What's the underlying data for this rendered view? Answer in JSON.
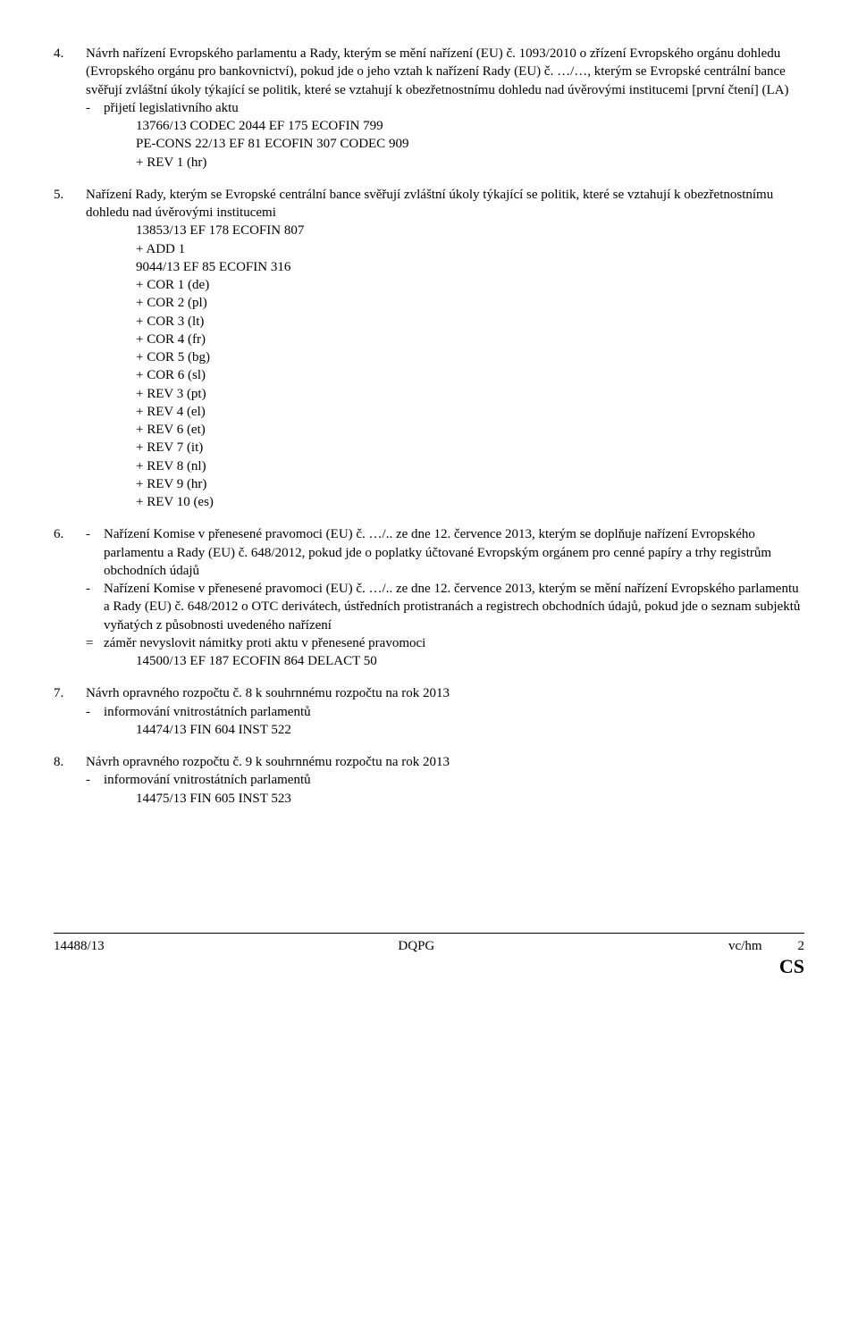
{
  "items": [
    {
      "num": "4.",
      "title": "Návrh nařízení Evropského parlamentu a Rady, kterým se mění nařízení (EU) č. 1093/2010 o zřízení Evropského orgánu dohledu (Evropského orgánu pro bankovnictví), pokud jde o jeho vztah k nařízení Rady (EU) č. …/…, kterým se Evropské centrální bance svěřují zvláštní úkoly týkající se politik, které se vztahují k obezřetnostnímu dohledu nad úvěrovými institucemi [první čtení] (LA)",
      "sub_label": "-",
      "sub_text": "přijetí legislativního aktu",
      "refs": [
        "13766/13 CODEC 2044 EF 175 ECOFIN 799",
        "PE-CONS 22/13 EF 81 ECOFIN 307 CODEC 909",
        "+ REV 1 (hr)"
      ]
    },
    {
      "num": "5.",
      "title": "Nařízení Rady, kterým se Evropské centrální bance svěřují zvláštní úkoly týkající se politik, které se vztahují k obezřetnostnímu dohledu nad úvěrovými institucemi",
      "refs": [
        "13853/13 EF 178 ECOFIN 807",
        "+ ADD 1",
        "9044/13 EF 85 ECOFIN 316",
        "+ COR 1 (de)",
        "+ COR 2 (pl)",
        "+ COR 3 (lt)",
        "+ COR 4 (fr)",
        "+ COR 5 (bg)",
        "+ COR 6 (sl)",
        "+ REV 3 (pt)",
        "+ REV 4 (el)",
        "+ REV 6 (et)",
        "+ REV 7 (it)",
        "+ REV 8 (nl)",
        "+ REV 9 (hr)",
        "+ REV 10 (es)"
      ]
    },
    {
      "num": "6.",
      "parts": [
        {
          "label": "-",
          "text": "Nařízení Komise v přenesené pravomoci (EU) č. …/.. ze dne 12. července 2013, kterým se doplňuje nařízení Evropského parlamentu a Rady (EU) č. 648/2012, pokud jde o poplatky účtované Evropským orgánem pro cenné papíry a trhy registrům obchodních údajů"
        },
        {
          "label": "-",
          "text": "Nařízení Komise v přenesené pravomoci (EU) č. …/.. ze dne 12. července 2013, kterým se mění nařízení Evropského parlamentu a Rady (EU) č. 648/2012 o OTC derivátech, ústředních protistranách a registrech obchodních údajů, pokud jde o seznam subjektů vyňatých z působnosti uvedeného nařízení"
        },
        {
          "label": "=",
          "text": "záměr nevyslovit námitky proti aktu v přenesené pravomoci"
        }
      ],
      "refs_eq": [
        "14500/13 EF 187 ECOFIN 864 DELACT 50"
      ]
    },
    {
      "num": "7.",
      "title": "Návrh opravného rozpočtu č. 8 k souhrnnému rozpočtu na rok 2013",
      "sub_label": "-",
      "sub_text": "informování vnitrostátních parlamentů",
      "refs": [
        "14474/13 FIN 604 INST 522"
      ]
    },
    {
      "num": "8.",
      "title": "Návrh opravného rozpočtu č. 9 k souhrnnému rozpočtu na rok 2013",
      "sub_label": "-",
      "sub_text": "informování vnitrostátních parlamentů",
      "refs": [
        "14475/13 FIN 605 INST 523"
      ]
    }
  ],
  "footer": {
    "left": "14488/13",
    "center_top": "",
    "center": "DQPG",
    "right_top": "vc/hm",
    "right_page": "2",
    "right_lang": "CS"
  }
}
